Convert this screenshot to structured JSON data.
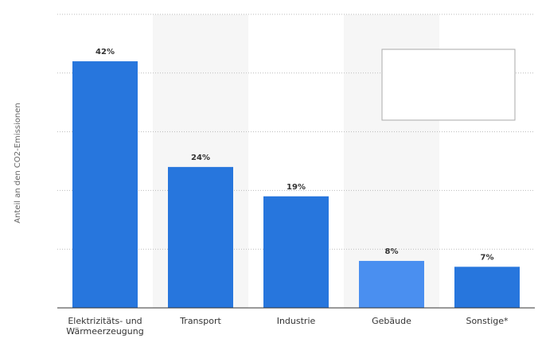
{
  "chart_data": {
    "type": "bar",
    "y_label": "Anteil an den CO2-Emissionen",
    "categories": [
      "Elektrizitäts- und Wärmeerzeugung",
      "Transport",
      "Industrie",
      "Gebäude",
      "Sonstige*"
    ],
    "values": [
      42,
      24,
      19,
      8,
      7
    ],
    "value_labels": [
      "42%",
      "24%",
      "19%",
      "8%",
      "7%"
    ],
    "colors": [
      "#2776dd",
      "#2776dd",
      "#2776dd",
      "#4a8ff0",
      "#2776dd"
    ],
    "ylim": [
      0,
      50
    ],
    "yticks": [
      10,
      20,
      30,
      40,
      50
    ],
    "grid": true
  }
}
